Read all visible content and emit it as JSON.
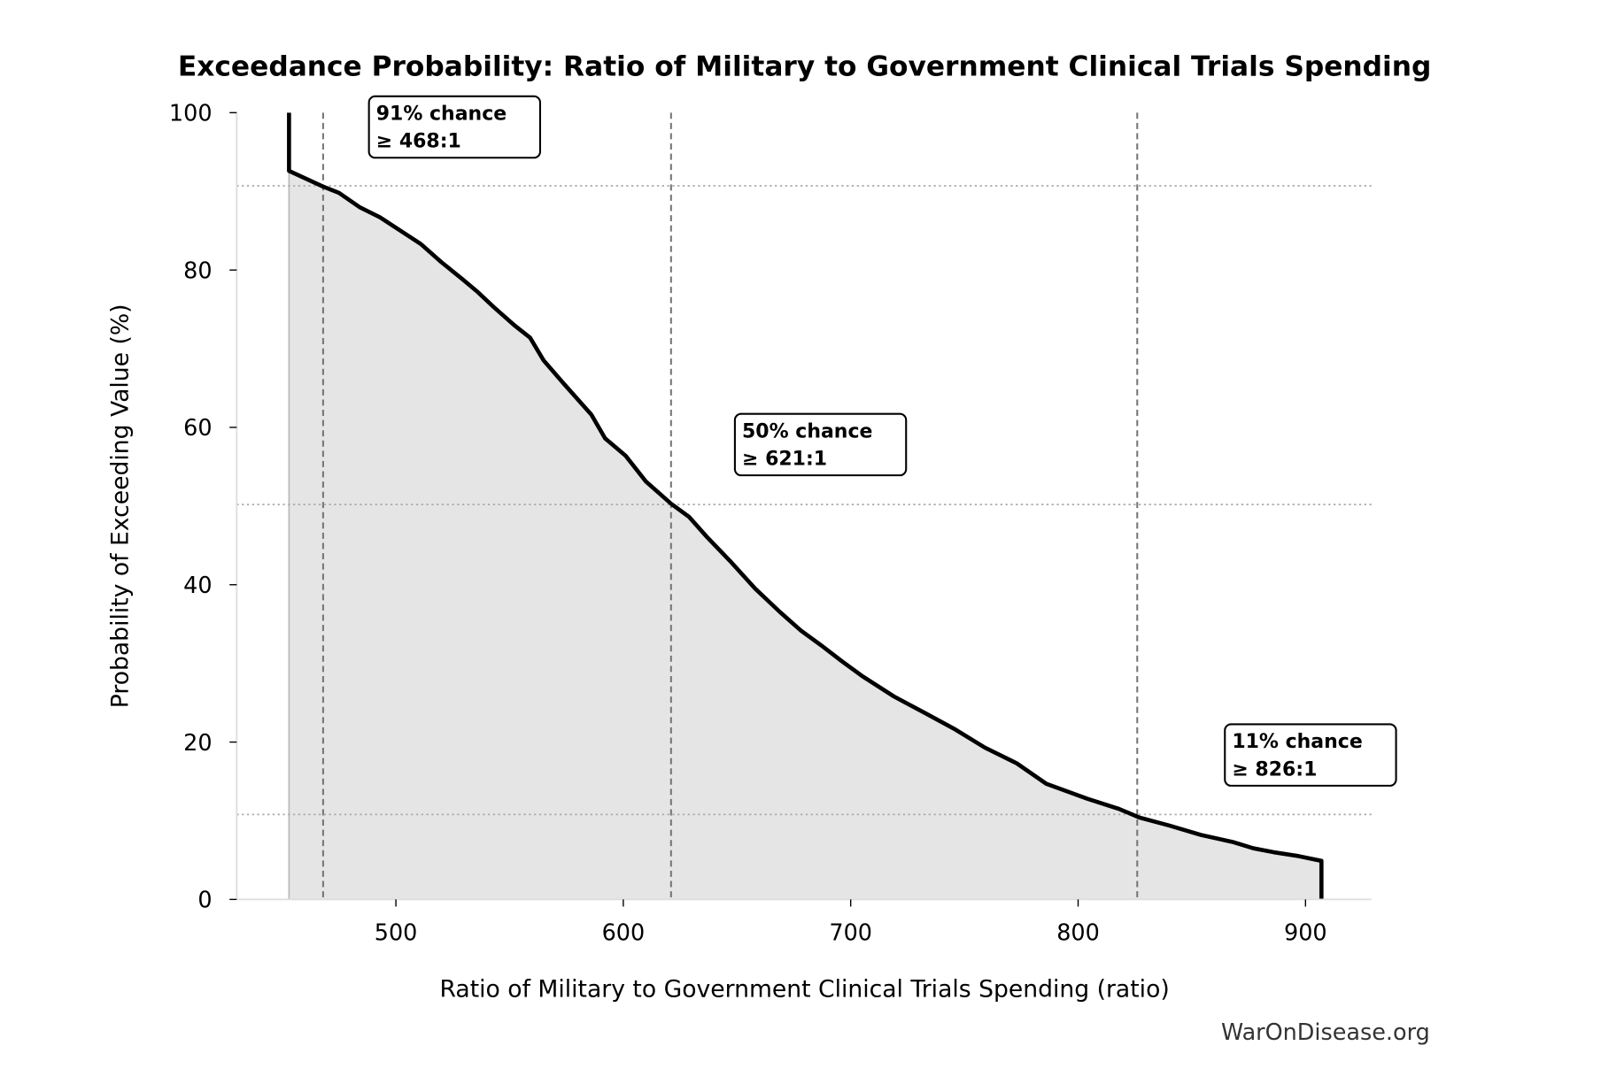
{
  "chart_data": {
    "type": "area",
    "title": "Exceedance Probability: Ratio of Military to Government Clinical Trials Spending",
    "xlabel": "Ratio of Military to Government Clinical Trials Spending (ratio)",
    "ylabel": "Probability of Exceeding Value (%)",
    "xlim": [
      430,
      929
    ],
    "ylim": [
      0,
      100
    ],
    "xticks": [
      500,
      600,
      700,
      800,
      900
    ],
    "yticks": [
      0,
      20,
      40,
      60,
      80,
      100
    ],
    "grid": false,
    "line_color": "#000000",
    "fill_color": "#e5e5e5",
    "curve": {
      "x": [
        453,
        453,
        468,
        475,
        484,
        493,
        502,
        511,
        520,
        529,
        536,
        543,
        552,
        559,
        565,
        574,
        586,
        592,
        601,
        610,
        621,
        629,
        637,
        647,
        658,
        669,
        678,
        687,
        696,
        705,
        719,
        732,
        746,
        759,
        773,
        786,
        804,
        818,
        827,
        840,
        854,
        868,
        877,
        886,
        897,
        907,
        907
      ],
      "y": [
        100,
        92.6,
        90.6,
        89.8,
        88,
        86.7,
        85,
        83.3,
        81,
        78.9,
        77.2,
        75.3,
        73,
        71.4,
        68.5,
        65.5,
        61.6,
        58.6,
        56.4,
        53.1,
        50.3,
        48.6,
        46,
        43,
        39.5,
        36.5,
        34.2,
        32.3,
        30.3,
        28.4,
        25.8,
        23.8,
        21.6,
        19.3,
        17.3,
        14.7,
        12.8,
        11.5,
        10.4,
        9.4,
        8.2,
        7.3,
        6.5,
        6,
        5.5,
        4.9,
        0
      ]
    },
    "annotations": [
      {
        "probability": 91,
        "ratio": 468,
        "y_level": 90.7,
        "line1": "91% chance",
        "line2": "≥ 468:1"
      },
      {
        "probability": 50,
        "ratio": 621,
        "y_level": 50.2,
        "line1": "50% chance",
        "line2": "≥ 621:1"
      },
      {
        "probability": 11,
        "ratio": 826,
        "y_level": 10.8,
        "line1": "11% chance",
        "line2": "≥ 826:1"
      }
    ]
  },
  "watermark": "WarOnDisease.org"
}
